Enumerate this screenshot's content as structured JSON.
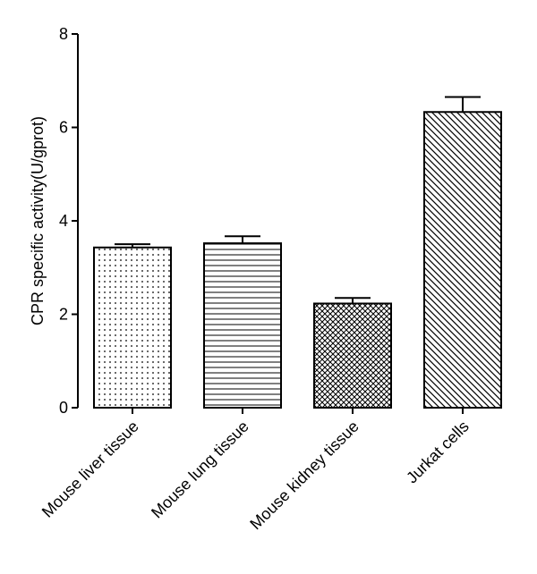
{
  "chart_data": {
    "type": "bar",
    "title": "",
    "xlabel": "",
    "ylabel": "CPR specific activity(U/gprot)",
    "ylim": [
      0,
      8
    ],
    "yticks": [
      0,
      2,
      4,
      6,
      8
    ],
    "grid": false,
    "categories": [
      "Mouse liver tissue",
      "Mouse lung tissue",
      "Mouse kidney tissue",
      "Jurkat cells"
    ],
    "values": [
      3.43,
      3.52,
      2.23,
      6.33
    ],
    "errors": [
      0.07,
      0.15,
      0.12,
      0.32
    ],
    "patterns": [
      "dots",
      "horizontal-lines",
      "crosshatch",
      "diagonal-lines"
    ]
  }
}
